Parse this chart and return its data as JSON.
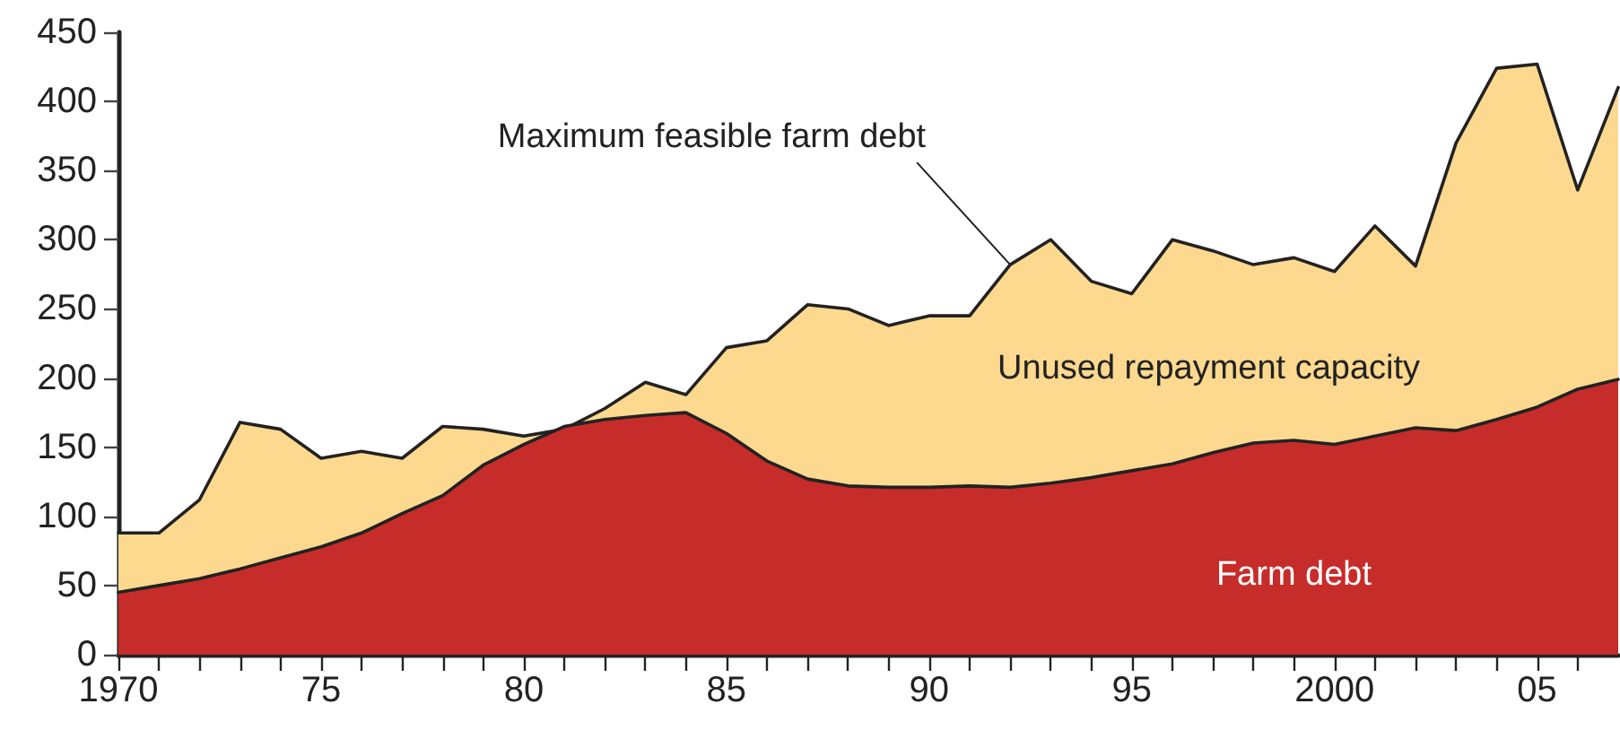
{
  "chart_data": {
    "type": "area",
    "x": [
      1970,
      1971,
      1972,
      1973,
      1974,
      1975,
      1976,
      1977,
      1978,
      1979,
      1980,
      1981,
      1982,
      1983,
      1984,
      1985,
      1986,
      1987,
      1988,
      1989,
      1990,
      1991,
      1992,
      1993,
      1994,
      1995,
      1996,
      1997,
      1998,
      1999,
      2000,
      2001,
      2002,
      2003,
      2004,
      2005,
      2006,
      2007
    ],
    "series": [
      {
        "color": "#fcd98f",
        "values": [
          88,
          88,
          112,
          168,
          163,
          142,
          147,
          142,
          165,
          163,
          158,
          163,
          178,
          197,
          188,
          222,
          227,
          253,
          250,
          238,
          245,
          245,
          282,
          300,
          270,
          261,
          300,
          292,
          282,
          287,
          277,
          310,
          281,
          370,
          424,
          427,
          336,
          410
        ]
      },
      {
        "name": "Farm debt",
        "color": "#c62d2a",
        "values": [
          45,
          50,
          55,
          62,
          70,
          78,
          88,
          102,
          115,
          137,
          152,
          165,
          170,
          173,
          175,
          160,
          140,
          127,
          122,
          121,
          121,
          122,
          121,
          124,
          128,
          133,
          138,
          146,
          153,
          155,
          152,
          158,
          164,
          162,
          170,
          179,
          192,
          199
        ]
      }
    ],
    "xlim": [
      1970,
      2007
    ],
    "xticks": [
      {
        "value": 1970,
        "label": "1970"
      },
      {
        "value": 1971,
        "label": null
      },
      {
        "value": 1972,
        "label": null
      },
      {
        "value": 1973,
        "label": null
      },
      {
        "value": 1974,
        "label": null
      },
      {
        "value": 1975,
        "label": "75"
      },
      {
        "value": 1976,
        "label": null
      },
      {
        "value": 1977,
        "label": null
      },
      {
        "value": 1978,
        "label": null
      },
      {
        "value": 1979,
        "label": null
      },
      {
        "value": 1980,
        "label": "80"
      },
      {
        "value": 1981,
        "label": null
      },
      {
        "value": 1982,
        "label": null
      },
      {
        "value": 1983,
        "label": null
      },
      {
        "value": 1984,
        "label": null
      },
      {
        "value": 1985,
        "label": "85"
      },
      {
        "value": 1986,
        "label": null
      },
      {
        "value": 1987,
        "label": null
      },
      {
        "value": 1988,
        "label": null
      },
      {
        "value": 1989,
        "label": null
      },
      {
        "value": 1990,
        "label": "90"
      },
      {
        "value": 1991,
        "label": null
      },
      {
        "value": 1992,
        "label": null
      },
      {
        "value": 1993,
        "label": null
      },
      {
        "value": 1994,
        "label": null
      },
      {
        "value": 1995,
        "label": "95"
      },
      {
        "value": 1996,
        "label": null
      },
      {
        "value": 1997,
        "label": null
      },
      {
        "value": 1998,
        "label": null
      },
      {
        "value": 1999,
        "label": null
      },
      {
        "value": 2000,
        "label": "2000"
      },
      {
        "value": 2001,
        "label": null
      },
      {
        "value": 2002,
        "label": null
      },
      {
        "value": 2003,
        "label": null
      },
      {
        "value": 2004,
        "label": null
      },
      {
        "value": 2005,
        "label": "05"
      },
      {
        "value": 2006,
        "label": null
      }
    ],
    "ylim": [
      0,
      450
    ],
    "yticks": [
      0,
      50,
      100,
      150,
      200,
      250,
      300,
      350,
      400,
      450
    ],
    "annotations": [
      {
        "text": "Maximum feasible farm debt",
        "x": 1992,
        "y": 282
      },
      "Unused repayment capacity"
    ],
    "grid": false,
    "legend": false,
    "marker": "none",
    "line_style": "solid"
  }
}
